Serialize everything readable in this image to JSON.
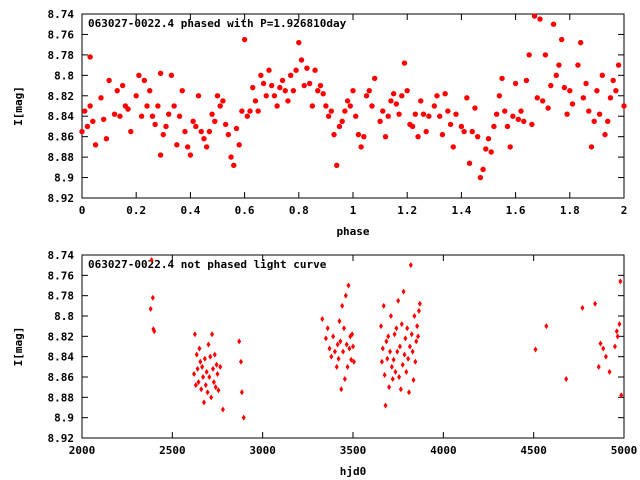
{
  "chart_data": [
    {
      "type": "scatter",
      "title": "063027-0022.4 phased with P=1.926810day",
      "xlabel": "phase",
      "ylabel": "I[mag]",
      "xlim": [
        0,
        2
      ],
      "ylim": [
        8.92,
        8.74
      ],
      "y_inverted": true,
      "grid": false,
      "marker": "filled-circle",
      "marker_color": "#ff0000",
      "xticks": [
        "0",
        "0.2",
        "0.4",
        "0.6",
        "0.8",
        "1",
        "1.2",
        "1.4",
        "1.6",
        "1.8",
        "2"
      ],
      "yticks": [
        "8.74",
        "8.76",
        "8.78",
        "8.8",
        "8.82",
        "8.84",
        "8.86",
        "8.88",
        "8.9",
        "8.92"
      ],
      "points": [
        [
          0.0,
          8.855
        ],
        [
          0.01,
          8.835
        ],
        [
          0.02,
          8.85
        ],
        [
          0.03,
          8.83
        ],
        [
          0.03,
          8.782
        ],
        [
          0.04,
          8.845
        ],
        [
          0.05,
          8.868
        ],
        [
          0.07,
          8.822
        ],
        [
          0.08,
          8.843
        ],
        [
          0.09,
          8.862
        ],
        [
          0.1,
          8.805
        ],
        [
          0.12,
          8.838
        ],
        [
          0.13,
          8.815
        ],
        [
          0.14,
          8.84
        ],
        [
          0.15,
          8.81
        ],
        [
          0.16,
          8.83
        ],
        [
          0.17,
          8.833
        ],
        [
          0.18,
          8.855
        ],
        [
          0.2,
          8.82
        ],
        [
          0.21,
          8.8
        ],
        [
          0.22,
          8.84
        ],
        [
          0.23,
          8.805
        ],
        [
          0.24,
          8.83
        ],
        [
          0.25,
          8.815
        ],
        [
          0.26,
          8.84
        ],
        [
          0.27,
          8.848
        ],
        [
          0.28,
          8.83
        ],
        [
          0.29,
          8.798
        ],
        [
          0.29,
          8.878
        ],
        [
          0.3,
          8.858
        ],
        [
          0.31,
          8.85
        ],
        [
          0.32,
          8.838
        ],
        [
          0.33,
          8.8
        ],
        [
          0.34,
          8.83
        ],
        [
          0.35,
          8.868
        ],
        [
          0.36,
          8.84
        ],
        [
          0.37,
          8.815
        ],
        [
          0.38,
          8.855
        ],
        [
          0.39,
          8.87
        ],
        [
          0.4,
          8.878
        ],
        [
          0.41,
          8.845
        ],
        [
          0.42,
          8.85
        ],
        [
          0.43,
          8.82
        ],
        [
          0.44,
          8.855
        ],
        [
          0.45,
          8.862
        ],
        [
          0.46,
          8.87
        ],
        [
          0.47,
          8.855
        ],
        [
          0.48,
          8.838
        ],
        [
          0.49,
          8.845
        ],
        [
          0.5,
          8.82
        ],
        [
          0.51,
          8.83
        ],
        [
          0.52,
          8.825
        ],
        [
          0.53,
          8.848
        ],
        [
          0.54,
          8.858
        ],
        [
          0.55,
          8.88
        ],
        [
          0.56,
          8.888
        ],
        [
          0.57,
          8.852
        ],
        [
          0.58,
          8.868
        ],
        [
          0.59,
          8.835
        ],
        [
          0.6,
          8.765
        ],
        [
          0.61,
          8.84
        ],
        [
          0.62,
          8.835
        ],
        [
          0.63,
          8.812
        ],
        [
          0.64,
          8.825
        ],
        [
          0.65,
          8.835
        ],
        [
          0.66,
          8.8
        ],
        [
          0.67,
          8.808
        ],
        [
          0.68,
          8.82
        ],
        [
          0.69,
          8.795
        ],
        [
          0.7,
          8.81
        ],
        [
          0.71,
          8.82
        ],
        [
          0.72,
          8.83
        ],
        [
          0.73,
          8.812
        ],
        [
          0.74,
          8.805
        ],
        [
          0.75,
          8.815
        ],
        [
          0.76,
          8.825
        ],
        [
          0.77,
          8.8
        ],
        [
          0.78,
          8.815
        ],
        [
          0.79,
          8.795
        ],
        [
          0.8,
          8.768
        ],
        [
          0.81,
          8.785
        ],
        [
          0.82,
          8.81
        ],
        [
          0.83,
          8.793
        ],
        [
          0.84,
          8.808
        ],
        [
          0.85,
          8.83
        ],
        [
          0.86,
          8.795
        ],
        [
          0.87,
          8.815
        ],
        [
          0.88,
          8.81
        ],
        [
          0.89,
          8.818
        ],
        [
          0.9,
          8.83
        ],
        [
          0.91,
          8.84
        ],
        [
          0.92,
          8.835
        ],
        [
          0.93,
          8.858
        ],
        [
          0.94,
          8.888
        ],
        [
          0.95,
          8.85
        ],
        [
          0.96,
          8.845
        ],
        [
          0.97,
          8.835
        ],
        [
          0.98,
          8.825
        ],
        [
          0.99,
          8.83
        ],
        [
          1.0,
          8.815
        ],
        [
          1.01,
          8.84
        ],
        [
          1.02,
          8.858
        ],
        [
          1.03,
          8.87
        ],
        [
          1.04,
          8.86
        ],
        [
          1.05,
          8.82
        ],
        [
          1.06,
          8.815
        ],
        [
          1.07,
          8.83
        ],
        [
          1.08,
          8.803
        ],
        [
          1.1,
          8.845
        ],
        [
          1.11,
          8.835
        ],
        [
          1.12,
          8.86
        ],
        [
          1.13,
          8.84
        ],
        [
          1.14,
          8.825
        ],
        [
          1.15,
          8.818
        ],
        [
          1.16,
          8.828
        ],
        [
          1.17,
          8.838
        ],
        [
          1.18,
          8.82
        ],
        [
          1.19,
          8.788
        ],
        [
          1.2,
          8.815
        ],
        [
          1.21,
          8.848
        ],
        [
          1.22,
          8.85
        ],
        [
          1.23,
          8.838
        ],
        [
          1.24,
          8.86
        ],
        [
          1.25,
          8.825
        ],
        [
          1.26,
          8.838
        ],
        [
          1.27,
          8.855
        ],
        [
          1.28,
          8.84
        ],
        [
          1.3,
          8.83
        ],
        [
          1.31,
          8.82
        ],
        [
          1.32,
          8.84
        ],
        [
          1.33,
          8.858
        ],
        [
          1.34,
          8.818
        ],
        [
          1.35,
          8.835
        ],
        [
          1.36,
          8.848
        ],
        [
          1.37,
          8.87
        ],
        [
          1.38,
          8.838
        ],
        [
          1.4,
          8.85
        ],
        [
          1.41,
          8.855
        ],
        [
          1.42,
          8.822
        ],
        [
          1.43,
          8.886
        ],
        [
          1.44,
          8.855
        ],
        [
          1.45,
          8.832
        ],
        [
          1.46,
          8.86
        ],
        [
          1.47,
          8.9
        ],
        [
          1.48,
          8.892
        ],
        [
          1.49,
          8.872
        ],
        [
          1.5,
          8.862
        ],
        [
          1.51,
          8.875
        ],
        [
          1.52,
          8.85
        ],
        [
          1.53,
          8.838
        ],
        [
          1.54,
          8.82
        ],
        [
          1.55,
          8.803
        ],
        [
          1.56,
          8.835
        ],
        [
          1.57,
          8.85
        ],
        [
          1.58,
          8.87
        ],
        [
          1.59,
          8.84
        ],
        [
          1.6,
          8.808
        ],
        [
          1.61,
          8.843
        ],
        [
          1.62,
          8.835
        ],
        [
          1.63,
          8.845
        ],
        [
          1.64,
          8.805
        ],
        [
          1.65,
          8.78
        ],
        [
          1.66,
          8.848
        ],
        [
          1.67,
          8.742
        ],
        [
          1.68,
          8.822
        ],
        [
          1.69,
          8.745
        ],
        [
          1.7,
          8.825
        ],
        [
          1.71,
          8.78
        ],
        [
          1.72,
          8.832
        ],
        [
          1.73,
          8.81
        ],
        [
          1.74,
          8.75
        ],
        [
          1.75,
          8.8
        ],
        [
          1.76,
          8.79
        ],
        [
          1.77,
          8.765
        ],
        [
          1.78,
          8.812
        ],
        [
          1.79,
          8.838
        ],
        [
          1.8,
          8.815
        ],
        [
          1.81,
          8.828
        ],
        [
          1.83,
          8.79
        ],
        [
          1.84,
          8.768
        ],
        [
          1.85,
          8.822
        ],
        [
          1.86,
          8.808
        ],
        [
          1.87,
          8.835
        ],
        [
          1.88,
          8.87
        ],
        [
          1.89,
          8.845
        ],
        [
          1.9,
          8.815
        ],
        [
          1.91,
          8.838
        ],
        [
          1.92,
          8.8
        ],
        [
          1.93,
          8.858
        ],
        [
          1.94,
          8.845
        ],
        [
          1.95,
          8.822
        ],
        [
          1.96,
          8.805
        ],
        [
          1.97,
          8.815
        ],
        [
          1.98,
          8.79
        ],
        [
          2.0,
          8.83
        ]
      ]
    },
    {
      "type": "scatter",
      "title": "063027-0022.4 not phased light curve",
      "xlabel": "hjd0",
      "ylabel": "I[mag]",
      "xlim": [
        2000,
        5000
      ],
      "ylim": [
        8.92,
        8.74
      ],
      "y_inverted": true,
      "grid": false,
      "marker": "diamond",
      "marker_color": "#ff0000",
      "xticks": [
        "2000",
        "2500",
        "3000",
        "3500",
        "4000",
        "4500",
        "5000"
      ],
      "yticks": [
        "8.74",
        "8.76",
        "8.78",
        "8.8",
        "8.82",
        "8.84",
        "8.86",
        "8.88",
        "8.9",
        "8.92"
      ],
      "points": [
        [
          2380,
          8.793
        ],
        [
          2385,
          8.745
        ],
        [
          2392,
          8.782
        ],
        [
          2395,
          8.813
        ],
        [
          2400,
          8.815
        ],
        [
          2620,
          8.857
        ],
        [
          2625,
          8.818
        ],
        [
          2630,
          8.868
        ],
        [
          2635,
          8.838
        ],
        [
          2640,
          8.852
        ],
        [
          2645,
          8.865
        ],
        [
          2650,
          8.832
        ],
        [
          2655,
          8.845
        ],
        [
          2660,
          8.872
        ],
        [
          2665,
          8.85
        ],
        [
          2670,
          8.86
        ],
        [
          2675,
          8.885
        ],
        [
          2680,
          8.842
        ],
        [
          2685,
          8.868
        ],
        [
          2690,
          8.855
        ],
        [
          2695,
          8.875
        ],
        [
          2700,
          8.828
        ],
        [
          2705,
          8.86
        ],
        [
          2710,
          8.84
        ],
        [
          2715,
          8.88
        ],
        [
          2720,
          8.818
        ],
        [
          2725,
          8.852
        ],
        [
          2730,
          8.865
        ],
        [
          2735,
          8.838
        ],
        [
          2740,
          8.87
        ],
        [
          2745,
          8.848
        ],
        [
          2750,
          8.857
        ],
        [
          2755,
          8.873
        ],
        [
          2765,
          8.85
        ],
        [
          2780,
          8.892
        ],
        [
          2870,
          8.825
        ],
        [
          2880,
          8.845
        ],
        [
          2885,
          8.875
        ],
        [
          2895,
          8.9
        ],
        [
          3330,
          8.803
        ],
        [
          3350,
          8.822
        ],
        [
          3360,
          8.812
        ],
        [
          3370,
          8.832
        ],
        [
          3380,
          8.84
        ],
        [
          3390,
          8.82
        ],
        [
          3400,
          8.835
        ],
        [
          3410,
          8.85
        ],
        [
          3415,
          8.828
        ],
        [
          3420,
          8.842
        ],
        [
          3425,
          8.805
        ],
        [
          3430,
          8.825
        ],
        [
          3435,
          8.872
        ],
        [
          3440,
          8.79
        ],
        [
          3445,
          8.835
        ],
        [
          3450,
          8.812
        ],
        [
          3455,
          8.862
        ],
        [
          3460,
          8.78
        ],
        [
          3465,
          8.828
        ],
        [
          3470,
          8.85
        ],
        [
          3475,
          8.77
        ],
        [
          3480,
          8.832
        ],
        [
          3485,
          8.82
        ],
        [
          3490,
          8.843
        ],
        [
          3495,
          8.818
        ],
        [
          3500,
          8.83
        ],
        [
          3505,
          8.845
        ],
        [
          3655,
          8.81
        ],
        [
          3660,
          8.845
        ],
        [
          3665,
          8.832
        ],
        [
          3670,
          8.79
        ],
        [
          3675,
          8.858
        ],
        [
          3680,
          8.888
        ],
        [
          3685,
          8.825
        ],
        [
          3690,
          8.842
        ],
        [
          3695,
          8.82
        ],
        [
          3700,
          8.87
        ],
        [
          3705,
          8.835
        ],
        [
          3710,
          8.8
        ],
        [
          3715,
          8.85
        ],
        [
          3720,
          8.862
        ],
        [
          3725,
          8.843
        ],
        [
          3730,
          8.818
        ],
        [
          3735,
          8.855
        ],
        [
          3740,
          8.812
        ],
        [
          3745,
          8.835
        ],
        [
          3750,
          8.785
        ],
        [
          3755,
          8.86
        ],
        [
          3760,
          8.83
        ],
        [
          3765,
          8.872
        ],
        [
          3770,
          8.808
        ],
        [
          3775,
          8.848
        ],
        [
          3780,
          8.776
        ],
        [
          3785,
          8.838
        ],
        [
          3790,
          8.822
        ],
        [
          3795,
          8.855
        ],
        [
          3800,
          8.812
        ],
        [
          3805,
          8.842
        ],
        [
          3810,
          8.875
        ],
        [
          3815,
          8.83
        ],
        [
          3820,
          8.75
        ],
        [
          3825,
          8.818
        ],
        [
          3830,
          8.835
        ],
        [
          3835,
          8.863
        ],
        [
          3840,
          8.8
        ],
        [
          3845,
          8.845
        ],
        [
          3850,
          8.825
        ],
        [
          3855,
          8.81
        ],
        [
          3860,
          8.82
        ],
        [
          3865,
          8.795
        ],
        [
          3870,
          8.788
        ],
        [
          4510,
          8.833
        ],
        [
          4570,
          8.81
        ],
        [
          4680,
          8.862
        ],
        [
          4770,
          8.792
        ],
        [
          4840,
          8.788
        ],
        [
          4860,
          8.85
        ],
        [
          4870,
          8.827
        ],
        [
          4885,
          8.832
        ],
        [
          4900,
          8.84
        ],
        [
          4920,
          8.855
        ],
        [
          4950,
          8.83
        ],
        [
          4960,
          8.815
        ],
        [
          4965,
          8.82
        ],
        [
          4975,
          8.808
        ],
        [
          4980,
          8.766
        ],
        [
          4985,
          8.878
        ]
      ]
    }
  ]
}
